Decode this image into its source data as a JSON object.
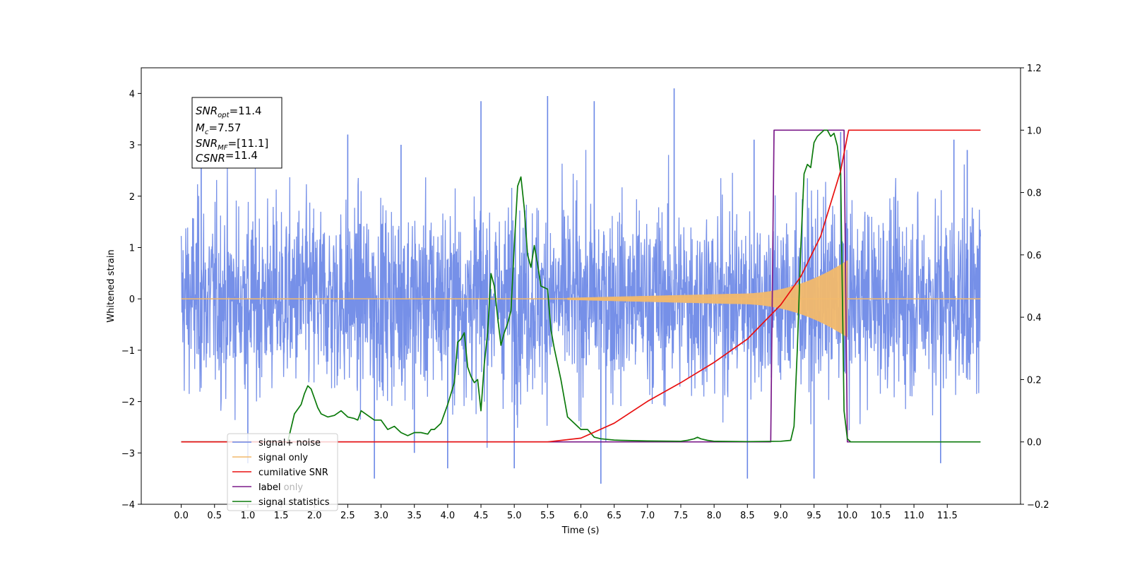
{
  "chart_data": {
    "type": "line",
    "xlabel": "Time (s)",
    "ylabel": "Whitened strain",
    "xlim": [
      -0.6,
      12.6
    ],
    "ylim": [
      -4.0,
      4.5
    ],
    "y2lim": [
      -0.2,
      1.2
    ],
    "grid": false,
    "legend_placement": "lower-left",
    "x_ticks": [
      "0.0",
      "0.5",
      "1.0",
      "1.5",
      "2.0",
      "2.5",
      "3.0",
      "3.5",
      "4.0",
      "4.5",
      "5.0",
      "5.5",
      "6.0",
      "6.5",
      "7.0",
      "7.5",
      "8.0",
      "8.5",
      "9.0",
      "9.5",
      "10.0",
      "10.5",
      "11.0",
      "11.5"
    ],
    "y_ticks": [
      "4",
      "3",
      "2",
      "1",
      "0",
      "−1",
      "−2",
      "−3",
      "−4"
    ],
    "y2_ticks": [
      "1.2",
      "1.0",
      "0.8",
      "0.6",
      "0.4",
      "0.2",
      "0.0",
      "−0.2"
    ],
    "annotation": {
      "line1": {
        "sym": "SNR",
        "sub": "opt",
        "val": "=11.4"
      },
      "line2": {
        "sym": "M",
        "sub": "c",
        "val": "=7.57"
      },
      "line3": {
        "sym": "SNR",
        "sub": "MF",
        "val": "=[11.1]"
      },
      "line4": {
        "sym": "CSNR",
        "sub": "",
        "val": "=11.4"
      }
    },
    "series": [
      {
        "name": "signal+ noise",
        "axis": "left",
        "color": "#6a87e6",
        "noise_envelope": [
          [
            0.0,
            2.1
          ],
          [
            12.0,
            2.1
          ]
        ],
        "noise_peaks": [
          [
            0.3,
            3.2
          ],
          [
            2.5,
            3.2
          ],
          [
            3.3,
            3.0
          ],
          [
            4.5,
            3.85
          ],
          [
            5.5,
            3.95
          ],
          [
            6.2,
            3.85
          ],
          [
            7.4,
            4.1
          ],
          [
            8.6,
            3.1
          ],
          [
            9.9,
            3.25
          ],
          [
            11.6,
            3.1
          ],
          [
            11.8,
            2.9
          ],
          [
            2.9,
            -3.5
          ],
          [
            6.3,
            -3.6
          ],
          [
            8.5,
            -3.5
          ],
          [
            9.5,
            -3.5
          ],
          [
            11.4,
            -3.2
          ],
          [
            1.0,
            -3.2
          ],
          [
            3.5,
            -3.0
          ],
          [
            4.0,
            -3.3
          ],
          [
            5.0,
            -3.3
          ]
        ]
      },
      {
        "name": "signal only",
        "axis": "left",
        "color": "#f2b96b",
        "chirp": {
          "start": 5.8,
          "end": 10.0,
          "amp_start": 0.02,
          "amp_mid": 0.1,
          "amp_end": 0.75
        }
      },
      {
        "name": "cumilative SNR",
        "axis": "right",
        "color": "#e81010",
        "x": [
          0.0,
          5.5,
          6.0,
          6.5,
          7.0,
          7.5,
          8.0,
          8.5,
          9.0,
          9.3,
          9.6,
          9.9,
          10.0,
          10.02,
          12.0
        ],
        "y": [
          0.0,
          0.0,
          0.012,
          0.06,
          0.13,
          0.19,
          0.255,
          0.33,
          0.44,
          0.53,
          0.66,
          0.87,
          0.98,
          1.0,
          1.0
        ]
      },
      {
        "name": "label",
        "axis": "right",
        "color": "#7b1a8a",
        "x": [
          0.0,
          8.85,
          8.9,
          9.95,
          10.0,
          10.05
        ],
        "y": [
          0.0,
          0.0,
          1.0,
          1.0,
          0.0,
          0.0
        ]
      },
      {
        "name": "label only",
        "axis": "right",
        "color": "#7b1a8a",
        "x": [],
        "y": []
      },
      {
        "name": "signal statistics",
        "axis": "right",
        "color": "#0b7a0b",
        "x": [
          0.0,
          1.6,
          1.7,
          1.8,
          1.85,
          1.9,
          1.95,
          2.0,
          2.05,
          2.1,
          2.2,
          2.3,
          2.4,
          2.45,
          2.5,
          2.6,
          2.65,
          2.7,
          2.8,
          2.9,
          3.0,
          3.1,
          3.2,
          3.3,
          3.4,
          3.5,
          3.6,
          3.7,
          3.75,
          3.8,
          3.9,
          4.0,
          4.1,
          4.15,
          4.2,
          4.25,
          4.3,
          4.35,
          4.4,
          4.45,
          4.5,
          4.55,
          4.6,
          4.65,
          4.7,
          4.75,
          4.8,
          4.85,
          4.9,
          4.95,
          5.0,
          5.05,
          5.1,
          5.15,
          5.2,
          5.25,
          5.3,
          5.35,
          5.4,
          5.5,
          5.55,
          5.6,
          5.7,
          5.8,
          5.9,
          6.0,
          6.1,
          6.2,
          6.3,
          6.4,
          6.5,
          6.6,
          7.0,
          7.5,
          7.6,
          7.7,
          7.75,
          7.8,
          7.9,
          8.0,
          8.5,
          9.0,
          9.15,
          9.2,
          9.25,
          9.3,
          9.35,
          9.4,
          9.45,
          9.5,
          9.55,
          9.6,
          9.65,
          9.7,
          9.75,
          9.8,
          9.85,
          9.9,
          9.95,
          10.0,
          10.05,
          10.1,
          12.0
        ],
        "y": [
          0.0,
          0.0,
          0.09,
          0.12,
          0.155,
          0.18,
          0.17,
          0.14,
          0.11,
          0.09,
          0.08,
          0.085,
          0.1,
          0.09,
          0.08,
          0.075,
          0.07,
          0.1,
          0.085,
          0.07,
          0.07,
          0.04,
          0.05,
          0.03,
          0.02,
          0.03,
          0.03,
          0.025,
          0.04,
          0.04,
          0.06,
          0.12,
          0.19,
          0.32,
          0.33,
          0.35,
          0.24,
          0.21,
          0.19,
          0.2,
          0.1,
          0.25,
          0.35,
          0.54,
          0.5,
          0.4,
          0.31,
          0.35,
          0.38,
          0.42,
          0.63,
          0.82,
          0.85,
          0.75,
          0.6,
          0.56,
          0.63,
          0.57,
          0.5,
          0.49,
          0.36,
          0.3,
          0.2,
          0.08,
          0.06,
          0.04,
          0.04,
          0.015,
          0.01,
          0.008,
          0.006,
          0.005,
          0.003,
          0.002,
          0.005,
          0.01,
          0.015,
          0.01,
          0.005,
          0.002,
          0.001,
          0.002,
          0.005,
          0.05,
          0.3,
          0.62,
          0.86,
          0.89,
          0.88,
          0.96,
          0.98,
          0.99,
          1.0,
          1.0,
          0.98,
          0.99,
          0.95,
          0.86,
          0.1,
          0.01,
          0.0,
          0.0,
          0.0
        ]
      }
    ]
  }
}
